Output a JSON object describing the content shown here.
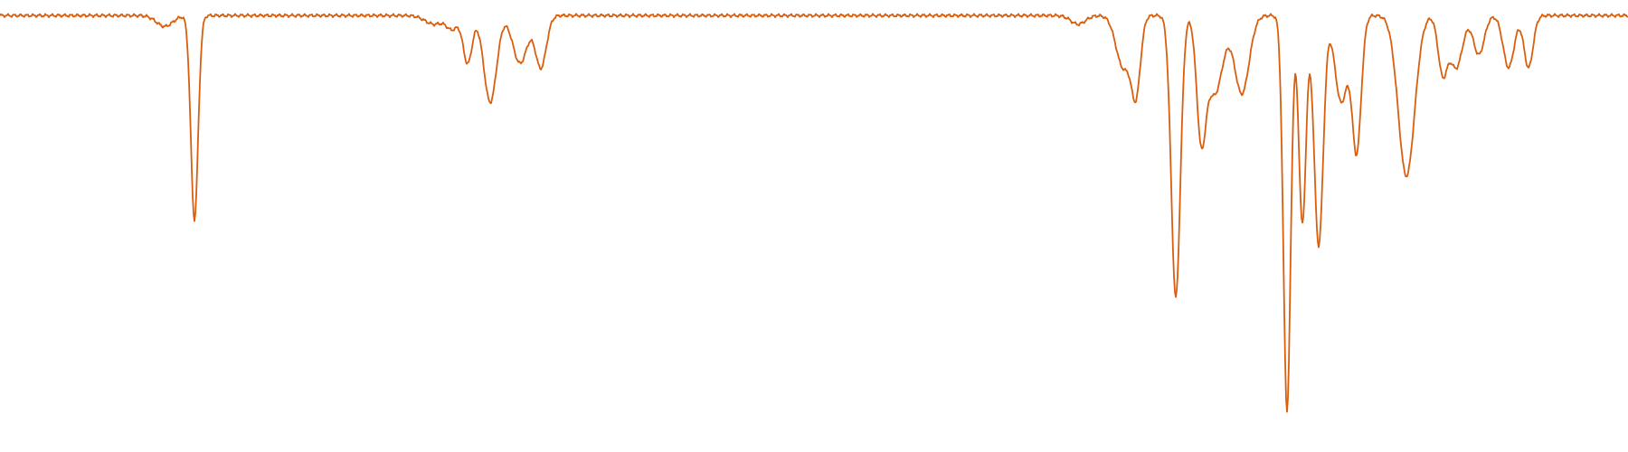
{
  "chart_data": {
    "type": "line",
    "title": "",
    "xlabel": "",
    "ylabel": "",
    "x_axis_shown": false,
    "y_axis_shown": false,
    "grid": false,
    "legend": "none",
    "xlim": [
      0,
      1800
    ],
    "ylim": [
      0,
      100
    ],
    "series": [
      {
        "color": "#d95f0e",
        "baseline": 98.5,
        "features": [
          {
            "center": 182,
            "depth": 2.5,
            "width": 9
          },
          {
            "center": 215,
            "depth": 47,
            "width": 4
          },
          {
            "center": 480,
            "depth": 2,
            "width": 10
          },
          {
            "center": 500,
            "depth": 3,
            "width": 6
          },
          {
            "center": 517,
            "depth": 11,
            "width": 5
          },
          {
            "center": 542,
            "depth": 20,
            "width": 7
          },
          {
            "center": 575,
            "depth": 11,
            "width": 8
          },
          {
            "center": 598,
            "depth": 12,
            "width": 6
          },
          {
            "center": 1192,
            "depth": 2,
            "width": 8
          },
          {
            "center": 1242,
            "depth": 12,
            "width": 8
          },
          {
            "center": 1256,
            "depth": 17,
            "width": 5
          },
          {
            "center": 1300,
            "depth": 65,
            "width": 5
          },
          {
            "center": 1328,
            "depth": 26,
            "width": 5
          },
          {
            "center": 1343,
            "depth": 18,
            "width": 9
          },
          {
            "center": 1373,
            "depth": 18,
            "width": 8
          },
          {
            "center": 1423,
            "depth": 91,
            "width": 4
          },
          {
            "center": 1440,
            "depth": 48,
            "width": 4
          },
          {
            "center": 1458,
            "depth": 53,
            "width": 5
          },
          {
            "center": 1483,
            "depth": 20,
            "width": 7
          },
          {
            "center": 1500,
            "depth": 31,
            "width": 5
          },
          {
            "center": 1555,
            "depth": 37,
            "width": 9
          },
          {
            "center": 1595,
            "depth": 13,
            "width": 5
          },
          {
            "center": 1610,
            "depth": 12,
            "width": 7
          },
          {
            "center": 1635,
            "depth": 9,
            "width": 6
          },
          {
            "center": 1668,
            "depth": 12,
            "width": 6
          },
          {
            "center": 1690,
            "depth": 12,
            "width": 5
          }
        ]
      }
    ]
  }
}
